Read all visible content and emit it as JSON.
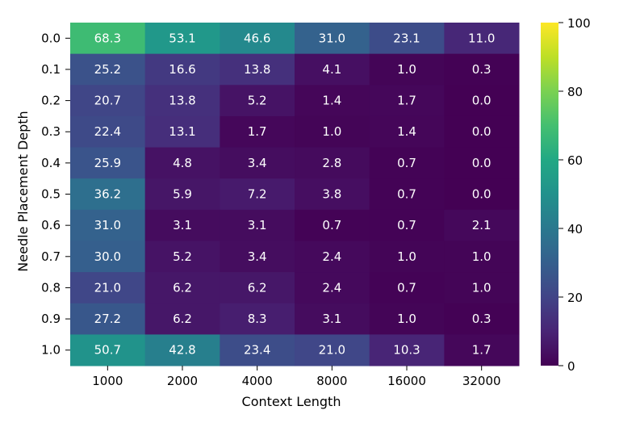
{
  "chart_data": {
    "type": "heatmap",
    "title": "",
    "xlabel": "Context Length",
    "ylabel": "Needle Placement Depth",
    "x": [
      "1000",
      "2000",
      "4000",
      "8000",
      "16000",
      "32000"
    ],
    "y": [
      "0.0",
      "0.1",
      "0.2",
      "0.3",
      "0.4",
      "0.5",
      "0.6",
      "0.7",
      "0.8",
      "0.9",
      "1.0"
    ],
    "values": [
      [
        68.3,
        53.1,
        46.6,
        31.0,
        23.1,
        11.0
      ],
      [
        25.2,
        16.6,
        13.8,
        4.1,
        1.0,
        0.3
      ],
      [
        20.7,
        13.8,
        5.2,
        1.4,
        1.7,
        0.0
      ],
      [
        22.4,
        13.1,
        1.7,
        1.0,
        1.4,
        0.0
      ],
      [
        25.9,
        4.8,
        3.4,
        2.8,
        0.7,
        0.0
      ],
      [
        36.2,
        5.9,
        7.2,
        3.8,
        0.7,
        0.0
      ],
      [
        31.0,
        3.1,
        3.1,
        0.7,
        0.7,
        2.1
      ],
      [
        30.0,
        5.2,
        3.4,
        2.4,
        1.0,
        1.0
      ],
      [
        21.0,
        6.2,
        6.2,
        2.4,
        0.7,
        1.0
      ],
      [
        27.2,
        6.2,
        8.3,
        3.1,
        1.0,
        0.3
      ],
      [
        50.7,
        42.8,
        23.4,
        21.0,
        10.3,
        1.7
      ]
    ],
    "value_labels": [
      [
        "68.3",
        "53.1",
        "46.6",
        "31.0",
        "23.1",
        "11.0"
      ],
      [
        "25.2",
        "16.6",
        "13.8",
        "4.1",
        "1.0",
        "0.3"
      ],
      [
        "20.7",
        "13.8",
        "5.2",
        "1.4",
        "1.7",
        "0.0"
      ],
      [
        "22.4",
        "13.1",
        "1.7",
        "1.0",
        "1.4",
        "0.0"
      ],
      [
        "25.9",
        "4.8",
        "3.4",
        "2.8",
        "0.7",
        "0.0"
      ],
      [
        "36.2",
        "5.9",
        "7.2",
        "3.8",
        "0.7",
        "0.0"
      ],
      [
        "31.0",
        "3.1",
        "3.1",
        "0.7",
        "0.7",
        "2.1"
      ],
      [
        "30.0",
        "5.2",
        "3.4",
        "2.4",
        "1.0",
        "1.0"
      ],
      [
        "21.0",
        "6.2",
        "6.2",
        "2.4",
        "0.7",
        "1.0"
      ],
      [
        "27.2",
        "6.2",
        "8.3",
        "3.1",
        "1.0",
        "0.3"
      ],
      [
        "50.7",
        "42.8",
        "23.4",
        "21.0",
        "10.3",
        "1.7"
      ]
    ],
    "colormap": "viridis",
    "vmin": 0,
    "vmax": 100,
    "colorbar_ticks": [
      "0",
      "20",
      "40",
      "60",
      "80",
      "100"
    ],
    "grid": false,
    "legend": "colorbar-right"
  }
}
